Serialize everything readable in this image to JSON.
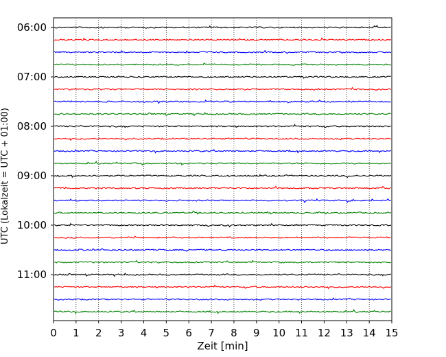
{
  "chart_data": {
    "type": "line",
    "subtype": "helicorder",
    "title": "",
    "xlabel": "Zeit  [min]",
    "ylabel": "UTC (Lokalzeit = UTC + 01:00)",
    "xlim": [
      0,
      15
    ],
    "x_ticks": [
      0,
      1,
      2,
      3,
      4,
      5,
      6,
      7,
      8,
      9,
      10,
      11,
      12,
      13,
      14,
      15
    ],
    "y_tick_labels": [
      "06:00",
      "07:00",
      "08:00",
      "09:00",
      "10:00",
      "11:00"
    ],
    "traces_per_hour": 4,
    "trace_duration_min": 15,
    "start_time_utc": "06:00",
    "trace_count": 24,
    "trace_colors": [
      "#000000",
      "#ff0000",
      "#0000ff",
      "#008000"
    ],
    "grid": {
      "vertical_dotted": true
    },
    "legend": "none"
  }
}
